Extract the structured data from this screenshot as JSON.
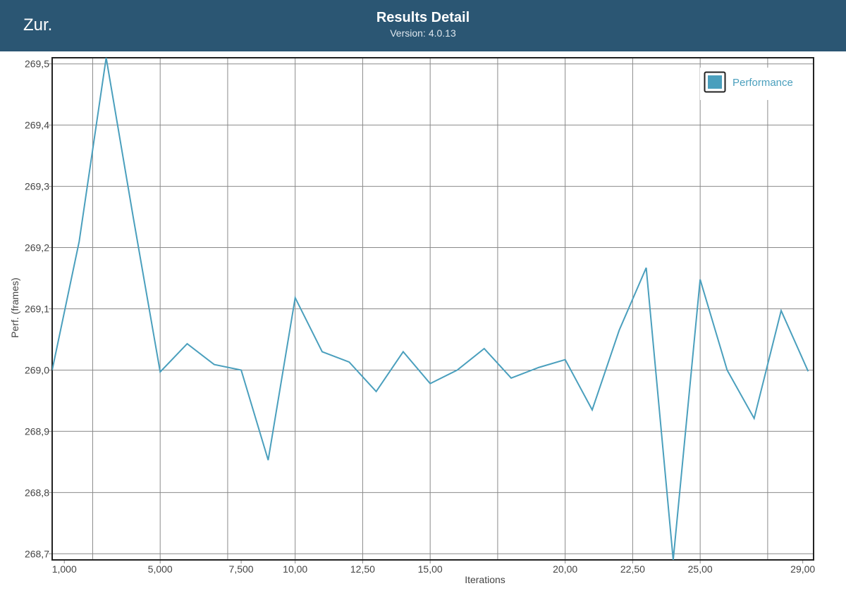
{
  "header": {
    "back_label": "Zur.",
    "title": "Results Detail",
    "version_label": "Version:",
    "version_value": "4.0.13"
  },
  "colors": {
    "header_bg": "#2b5673",
    "series": "#4a9fbd",
    "grid": "#8a8a8a",
    "legend_swatch": "#4a9fbd"
  },
  "chart_data": {
    "type": "line",
    "xlabel": "Iterations",
    "ylabel": "Perf. (frames)",
    "xlim": [
      0,
      28.2
    ],
    "ylim": [
      268.69,
      269.51
    ],
    "yticks": [
      {
        "value": 269.5,
        "label": "269,5"
      },
      {
        "value": 269.4,
        "label": "269,4"
      },
      {
        "value": 269.3,
        "label": "269,3"
      },
      {
        "value": 269.2,
        "label": "269,2"
      },
      {
        "value": 269.1,
        "label": "269,1"
      },
      {
        "value": 269.0,
        "label": "269,0"
      },
      {
        "value": 268.9,
        "label": "268,9"
      },
      {
        "value": 268.8,
        "label": "268,8"
      },
      {
        "value": 268.7,
        "label": "268,7"
      }
    ],
    "xticks": [
      {
        "value": 0.45,
        "label": "1,000"
      },
      {
        "value": 4,
        "label": "5,000"
      },
      {
        "value": 7,
        "label": "7,500"
      },
      {
        "value": 9,
        "label": "10,00"
      },
      {
        "value": 11.5,
        "label": "12,50"
      },
      {
        "value": 14,
        "label": "15,00"
      },
      {
        "value": 19,
        "label": "20,00"
      },
      {
        "value": 21.5,
        "label": "22,50"
      },
      {
        "value": 24,
        "label": "25,00"
      },
      {
        "value": 27.8,
        "label": "29,00"
      }
    ],
    "xgrid": [
      1.5,
      4,
      6.5,
      9,
      11.5,
      14,
      16.5,
      19,
      21.5,
      24,
      26.5
    ],
    "legend": {
      "position": "top-right",
      "entries": [
        "Performance"
      ]
    },
    "grid": true,
    "series": [
      {
        "name": "Performance",
        "x": [
          0,
          1,
          2,
          3,
          4,
          5,
          6,
          7,
          8,
          9,
          10,
          11,
          12,
          13,
          14,
          15,
          16,
          17,
          18,
          19,
          20,
          21,
          22,
          23,
          24,
          25,
          26,
          27,
          28
        ],
        "values": [
          269.0,
          269.21,
          269.51,
          269.25,
          268.997,
          269.043,
          269.009,
          269.0,
          268.853,
          269.118,
          269.03,
          269.013,
          268.965,
          269.03,
          268.978,
          269.0,
          269.035,
          268.987,
          269.004,
          269.017,
          268.935,
          269.065,
          269.167,
          268.69,
          269.148,
          269.0,
          268.921,
          269.097,
          268.998
        ]
      }
    ]
  }
}
